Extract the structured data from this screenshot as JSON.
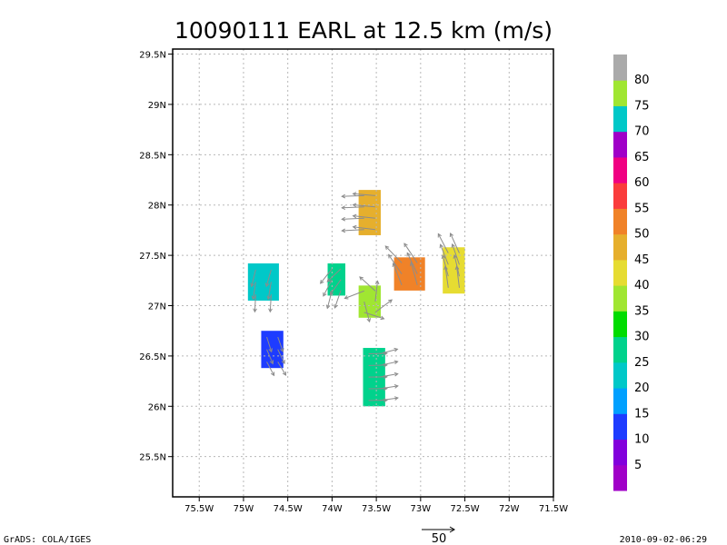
{
  "chart_data": {
    "type": "heatmap",
    "title": "10090111 EARL at 12.5 km (m/s)",
    "xlim": [
      -75.8,
      -71.5
    ],
    "ylim": [
      25.1,
      29.55
    ],
    "x_ticks": [
      {
        "value": -75.5,
        "label": "75.5W"
      },
      {
        "value": -75.0,
        "label": "75W"
      },
      {
        "value": -74.5,
        "label": "74.5W"
      },
      {
        "value": -74.0,
        "label": "74W"
      },
      {
        "value": -73.5,
        "label": "73.5W"
      },
      {
        "value": -73.0,
        "label": "73W"
      },
      {
        "value": -72.5,
        "label": "72.5W"
      },
      {
        "value": -72.0,
        "label": "72W"
      },
      {
        "value": -71.5,
        "label": "71.5W"
      }
    ],
    "y_ticks": [
      {
        "value": 25.5,
        "label": "25.5N"
      },
      {
        "value": 26.0,
        "label": "26N"
      },
      {
        "value": 26.5,
        "label": "26.5N"
      },
      {
        "value": 27.0,
        "label": "27N"
      },
      {
        "value": 27.5,
        "label": "27.5N"
      },
      {
        "value": 28.0,
        "label": "28N"
      },
      {
        "value": 28.5,
        "label": "28.5N"
      },
      {
        "value": 29.0,
        "label": "29N"
      },
      {
        "value": 29.5,
        "label": "29.5N"
      }
    ],
    "grid": true,
    "colorbar": {
      "orientation": "vertical",
      "placement": "right",
      "bins": [
        {
          "color": "#a000c8",
          "label": "5"
        },
        {
          "color": "#8200dc",
          "label": "10"
        },
        {
          "color": "#1e3cff",
          "label": "15"
        },
        {
          "color": "#00a0ff",
          "label": "20"
        },
        {
          "color": "#00c8c8",
          "label": "25"
        },
        {
          "color": "#00d28c",
          "label": "30"
        },
        {
          "color": "#00dc00",
          "label": "35"
        },
        {
          "color": "#a0e632",
          "label": "40"
        },
        {
          "color": "#e6dc32",
          "label": "45"
        },
        {
          "color": "#e6af2d",
          "label": "50"
        },
        {
          "color": "#f08228",
          "label": "55"
        },
        {
          "color": "#fa3c3c",
          "label": "60"
        },
        {
          "color": "#f00082",
          "label": "65"
        },
        {
          "color": "#a000c8",
          "label": "70"
        },
        {
          "color": "#00c8c8",
          "label": "75"
        },
        {
          "color": "#a0e632",
          "label": "80"
        },
        {
          "color": "#aaaaaa",
          "label": ""
        }
      ]
    },
    "wind_regions": [
      {
        "lon_min": -73.7,
        "lon_max": -73.45,
        "lat_min": 27.7,
        "lat_max": 28.15,
        "speed": 45
      },
      {
        "lon_min": -74.05,
        "lon_max": -73.85,
        "lat_min": 27.1,
        "lat_max": 27.42,
        "speed": 28
      },
      {
        "lon_min": -73.7,
        "lon_max": -73.45,
        "lat_min": 26.88,
        "lat_max": 27.2,
        "speed": 38
      },
      {
        "lon_min": -73.3,
        "lon_max": -72.95,
        "lat_min": 27.15,
        "lat_max": 27.48,
        "speed": 50
      },
      {
        "lon_min": -72.75,
        "lon_max": -72.5,
        "lat_min": 27.12,
        "lat_max": 27.58,
        "speed": 42
      },
      {
        "lon_min": -74.95,
        "lon_max": -74.6,
        "lat_min": 27.05,
        "lat_max": 27.42,
        "speed": 22
      },
      {
        "lon_min": -74.8,
        "lon_max": -74.55,
        "lat_min": 26.38,
        "lat_max": 26.75,
        "speed": 13
      },
      {
        "lon_min": -73.65,
        "lon_max": -73.4,
        "lat_min": 26.0,
        "lat_max": 26.58,
        "speed": 27
      }
    ],
    "reference_vector": {
      "label": "50"
    }
  },
  "footer": {
    "left": "GrADS: COLA/IGES",
    "right": "2010-09-02-06:29"
  }
}
